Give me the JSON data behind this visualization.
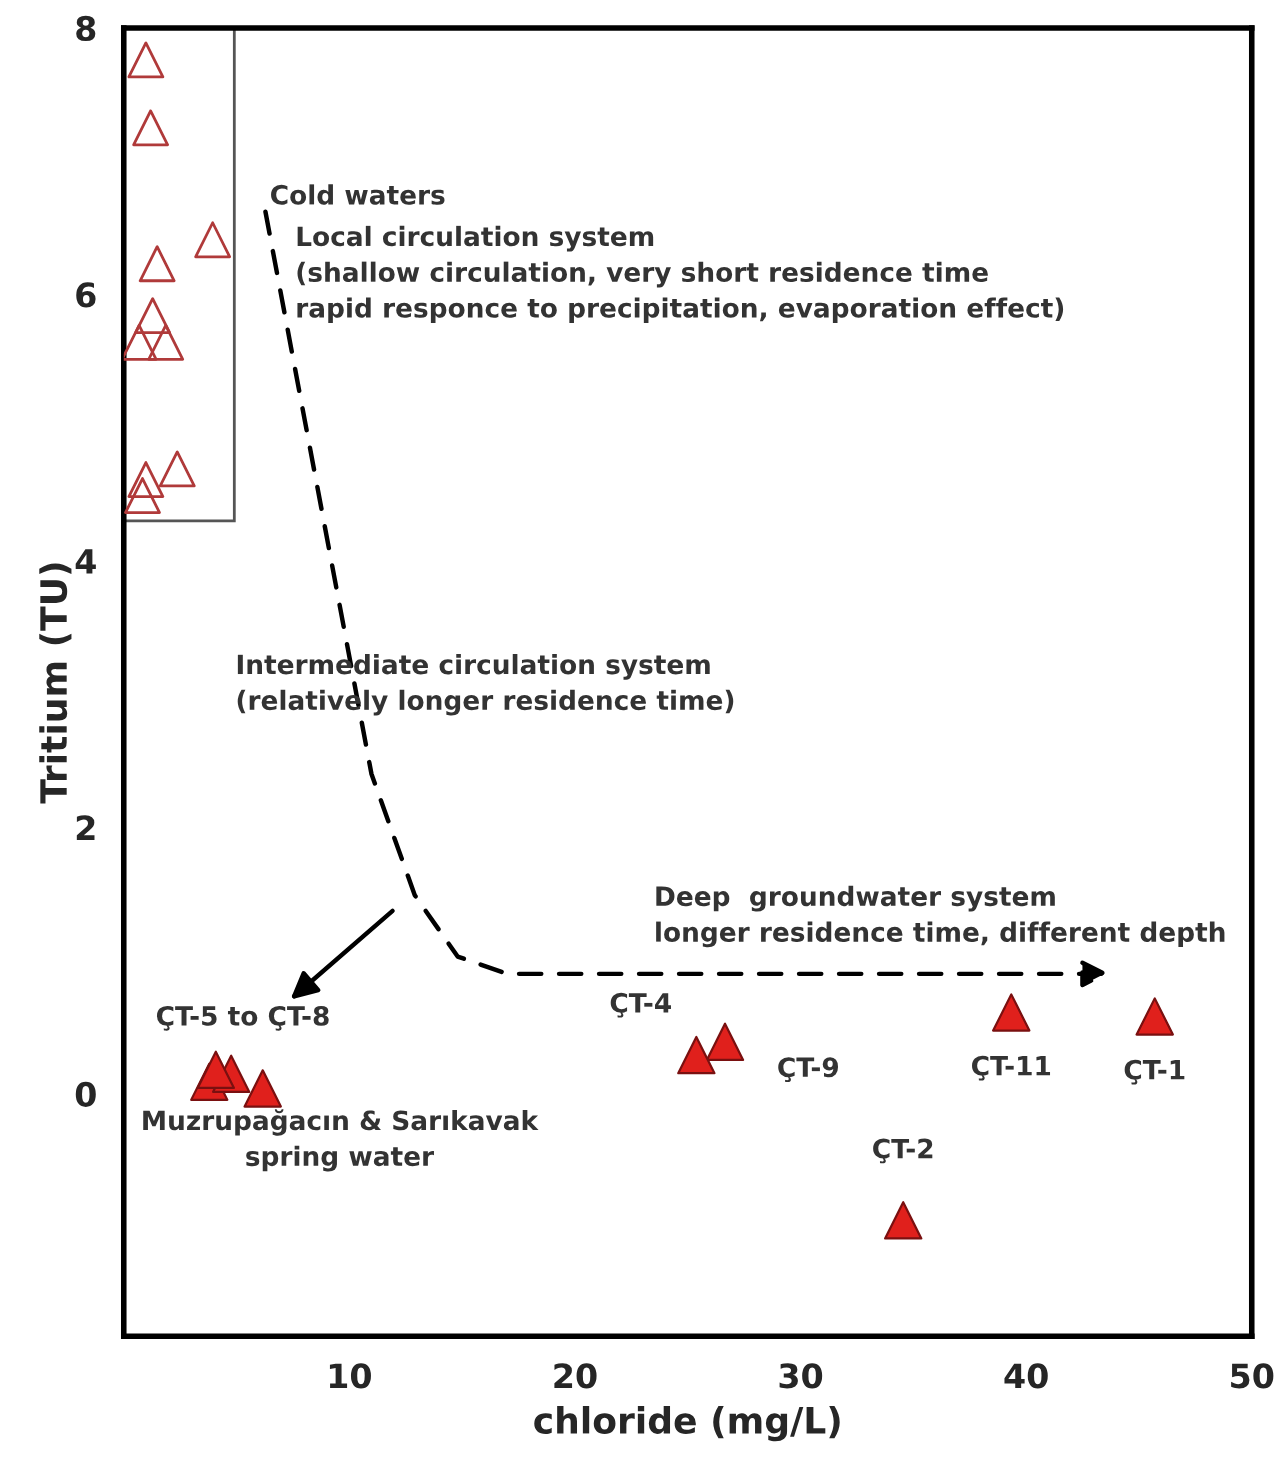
{
  "chart_data": {
    "type": "scatter",
    "xlabel": "chloride (mg/L)",
    "ylabel": "Tritium (TU)",
    "xlim": [
      0,
      50
    ],
    "xticks": [
      10,
      20,
      30,
      40,
      50
    ],
    "ylim": [
      -1.82,
      8
    ],
    "yticks": [
      0,
      2,
      4,
      6,
      8
    ],
    "marker": "triangle",
    "grid": false,
    "legend": false,
    "series": [
      {
        "color": "#b03a3a",
        "x": [
          0.98,
          1.19,
          1.48,
          3.94,
          1.28,
          0.68,
          1.86,
          2.37,
          0.98,
          0.83
        ],
        "values": [
          7.76,
          7.25,
          6.23,
          6.41,
          5.84,
          5.64,
          5.64,
          4.69,
          4.61,
          4.49
        ]
      },
      {
        "color": "#e0201c",
        "x": [
          4.08,
          4.76,
          3.79,
          6.16,
          25.38,
          26.65,
          34.55,
          39.34,
          45.7
        ],
        "values": [
          0.18,
          0.15,
          0.09,
          0.04,
          0.29,
          0.39,
          -0.95,
          0.61,
          0.58
        ]
      }
    ],
    "annotations": [
      "Cold waters",
      "Local circulation system\n(shallow circulation, very short residence time\nrapid responce to precipitation, evaporation effect)",
      "Intermediate circulation system\n(relatively longer residence time)",
      "Deep  groundwater system\nlonger residence time, different depth",
      {
        "text": "ÇT-5 to ÇT-8",
        "x": 4.3,
        "y": 0.15
      },
      "Muzrupağacın & Sarıkavak\nspring water",
      {
        "text": "ÇT-4",
        "x": 25.38,
        "y": 0.29
      },
      {
        "text": "ÇT-9",
        "x": 26.65,
        "y": 0.39
      },
      {
        "text": "ÇT-2",
        "x": 34.55,
        "y": -0.95
      },
      {
        "text": "ÇT-11",
        "x": 39.34,
        "y": 0.61
      },
      {
        "text": "ÇT-1",
        "x": 45.7,
        "y": 0.58
      }
    ]
  }
}
